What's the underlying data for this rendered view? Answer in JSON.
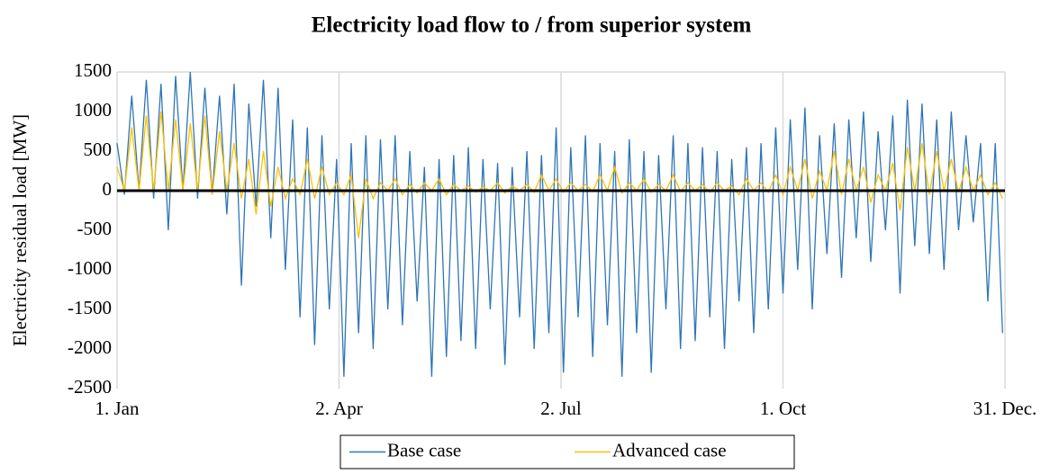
{
  "chart_data": {
    "type": "line",
    "title": "Electricity load flow to / from superior system",
    "y_label": "Electricity residual load  [MW]",
    "xlim": [
      0,
      364
    ],
    "xticks": [
      {
        "value": 0,
        "label": "1. Jan"
      },
      {
        "value": 91,
        "label": "2. Apr"
      },
      {
        "value": 182,
        "label": "2. Jul"
      },
      {
        "value": 273,
        "label": "1. Oct"
      },
      {
        "value": 364,
        "label": "31. Dec."
      }
    ],
    "ylim": [
      -2500,
      1500
    ],
    "yticks": [
      -2500,
      -2000,
      -1500,
      -1000,
      -500,
      0,
      500,
      1000,
      1500
    ],
    "grid": "x",
    "legend": "bottom",
    "x": [
      0,
      3,
      6,
      9,
      12,
      15,
      18,
      21,
      24,
      27,
      30,
      33,
      36,
      39,
      42,
      45,
      48,
      51,
      54,
      57,
      60,
      63,
      66,
      69,
      72,
      75,
      78,
      81,
      84,
      87,
      90,
      93,
      96,
      99,
      102,
      105,
      108,
      111,
      114,
      117,
      120,
      123,
      126,
      129,
      132,
      135,
      138,
      141,
      144,
      147,
      150,
      153,
      156,
      159,
      162,
      165,
      168,
      171,
      174,
      177,
      180,
      183,
      186,
      189,
      192,
      195,
      198,
      201,
      204,
      207,
      210,
      213,
      216,
      219,
      222,
      225,
      228,
      231,
      234,
      237,
      240,
      243,
      246,
      249,
      252,
      255,
      258,
      261,
      264,
      267,
      270,
      273,
      276,
      279,
      282,
      285,
      288,
      291,
      294,
      297,
      300,
      303,
      306,
      309,
      312,
      315,
      318,
      321,
      324,
      327,
      330,
      333,
      336,
      339,
      342,
      345,
      348,
      351,
      354,
      357,
      360,
      363
    ],
    "series": [
      {
        "name": "Base case",
        "color": "#2e75b6",
        "values": [
          600,
          -50,
          1200,
          0,
          1400,
          -100,
          1350,
          -500,
          1450,
          0,
          1500,
          -100,
          1300,
          -50,
          1200,
          -300,
          1350,
          -1200,
          1100,
          -200,
          1400,
          -600,
          1300,
          -1000,
          900,
          -1600,
          800,
          -1950,
          700,
          -1500,
          400,
          -2350,
          600,
          -1800,
          700,
          -2000,
          650,
          -1500,
          700,
          -1700,
          500,
          -1400,
          300,
          -2350,
          400,
          -2100,
          450,
          -1900,
          550,
          -2000,
          400,
          -1500,
          350,
          -2200,
          300,
          -1600,
          500,
          -2000,
          450,
          -1800,
          800,
          -2300,
          550,
          -1600,
          700,
          -2100,
          600,
          -1700,
          500,
          -2350,
          650,
          -1800,
          500,
          -2300,
          450,
          -1500,
          700,
          -2000,
          600,
          -1900,
          550,
          -1600,
          500,
          -2000,
          400,
          -1400,
          550,
          -1800,
          600,
          -1500,
          800,
          -1300,
          900,
          -1000,
          1050,
          -1500,
          700,
          -800,
          850,
          -1100,
          900,
          -600,
          1000,
          -900,
          750,
          -500,
          950,
          -1300,
          1150,
          -700,
          1100,
          -800,
          900,
          -1000,
          1000,
          -500,
          700,
          -400,
          600,
          -1400,
          600,
          -1800
        ]
      },
      {
        "name": "Advanced case",
        "color": "#ffc000",
        "values": [
          300,
          0,
          800,
          0,
          950,
          0,
          1000,
          0,
          900,
          0,
          850,
          0,
          950,
          -50,
          750,
          0,
          600,
          -100,
          400,
          -300,
          500,
          -200,
          300,
          -100,
          150,
          -50,
          400,
          -100,
          300,
          -50,
          100,
          -50,
          200,
          -600,
          150,
          -100,
          100,
          0,
          150,
          -50,
          80,
          -30,
          100,
          0,
          150,
          -50,
          80,
          0,
          60,
          -20,
          50,
          0,
          100,
          -30,
          60,
          0,
          80,
          -20,
          200,
          0,
          150,
          -20,
          100,
          0,
          80,
          -10,
          200,
          0,
          300,
          -30,
          100,
          0,
          150,
          -20,
          80,
          0,
          200,
          -10,
          100,
          0,
          80,
          -20,
          100,
          0,
          60,
          -50,
          150,
          0,
          100,
          -20,
          200,
          -50,
          300,
          0,
          400,
          -100,
          250,
          0,
          500,
          -50,
          400,
          0,
          300,
          -150,
          200,
          0,
          350,
          -250,
          550,
          0,
          600,
          -50,
          500,
          0,
          400,
          -20,
          300,
          0,
          200,
          -50,
          100,
          -100
        ]
      }
    ]
  }
}
